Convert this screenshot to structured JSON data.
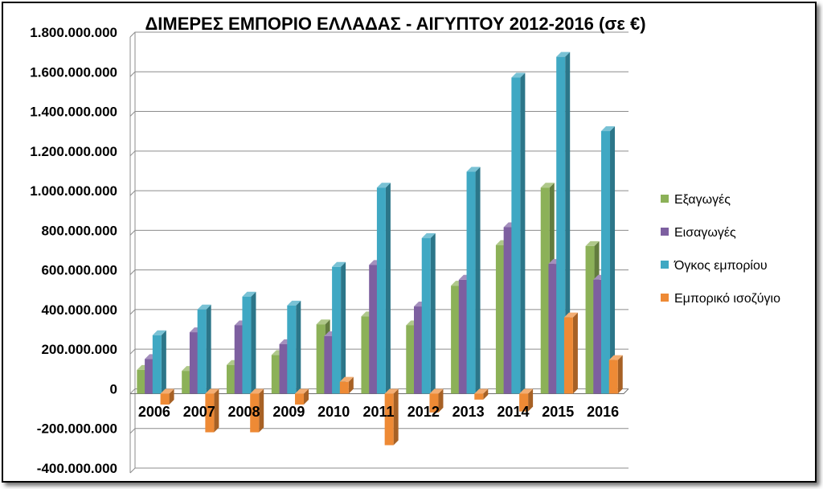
{
  "chart_data": {
    "type": "bar",
    "title": "ΔΙΜΕΡΕΣ ΕΜΠΟΡΙΟ ΕΛΛΑΔΑΣ - ΑΙΓΥΠΤΟΥ 2012-2016 (σε €)",
    "categories": [
      "2006",
      "2007",
      "2008",
      "2009",
      "2010",
      "2011",
      "2012",
      "2013",
      "2014",
      "2015",
      "2016"
    ],
    "series": [
      {
        "name": "Εξαγωγές",
        "color": "#8CB158",
        "values": [
          120000000,
          115000000,
          145000000,
          195000000,
          350000000,
          390000000,
          345000000,
          545000000,
          750000000,
          1040000000,
          745000000
        ]
      },
      {
        "name": "Εισαγωγές",
        "color": "#7D5FA0",
        "values": [
          175000000,
          310000000,
          345000000,
          250000000,
          290000000,
          650000000,
          440000000,
          575000000,
          840000000,
          655000000,
          575000000
        ]
      },
      {
        "name": "Όγκος εμπορίου",
        "color": "#3FA8C3",
        "values": [
          295000000,
          425000000,
          490000000,
          445000000,
          640000000,
          1040000000,
          785000000,
          1120000000,
          1595000000,
          1700000000,
          1325000000
        ]
      },
      {
        "name": "Εμπορικό ισοζύγιο",
        "color": "#EE8A35",
        "values": [
          -55000000,
          -195000000,
          -195000000,
          -55000000,
          60000000,
          -260000000,
          -95000000,
          -30000000,
          -90000000,
          385000000,
          170000000
        ]
      }
    ],
    "ylim": [
      -400000000,
      1800000000
    ],
    "yticks": [
      {
        "value": 1800000000,
        "label": "1.800.000.000"
      },
      {
        "value": 1600000000,
        "label": "1.600.000.000"
      },
      {
        "value": 1400000000,
        "label": "1.400.000.000"
      },
      {
        "value": 1200000000,
        "label": "1.200.000.000"
      },
      {
        "value": 1000000000,
        "label": "1.000.000.000"
      },
      {
        "value": 800000000,
        "label": "800.000.000"
      },
      {
        "value": 600000000,
        "label": "600.000.000"
      },
      {
        "value": 400000000,
        "label": "400.000.000"
      },
      {
        "value": 200000000,
        "label": "200.000.000"
      },
      {
        "value": 0,
        "label": "0"
      },
      {
        "value": -200000000,
        "label": "-200.000.000"
      },
      {
        "value": -400000000,
        "label": "-400.000.000"
      }
    ],
    "grid": true,
    "legend_position": "right",
    "style": "3d-columns"
  }
}
